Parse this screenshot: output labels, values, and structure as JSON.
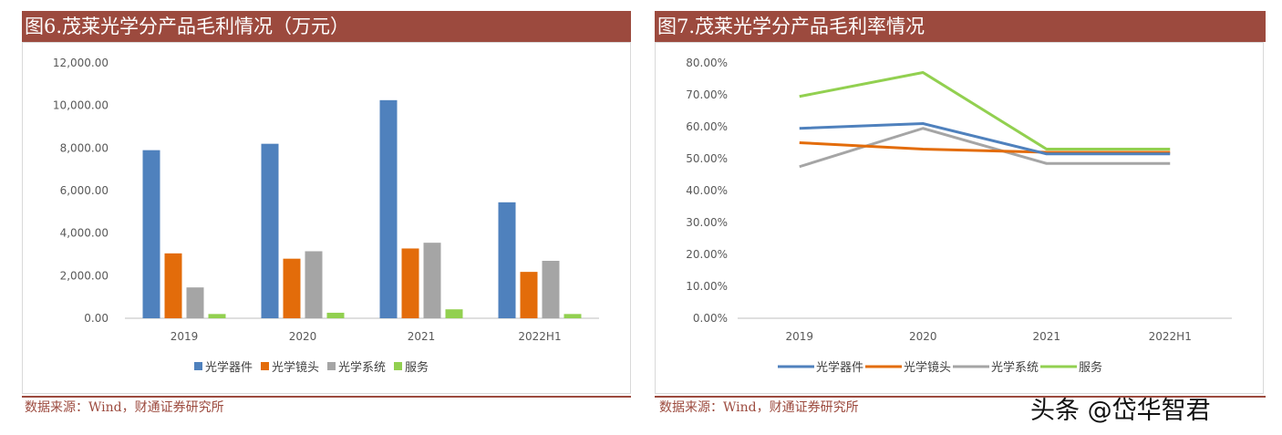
{
  "left": {
    "title": "图6.茂莱光学分产品毛利情况（万元）",
    "source": "数据来源：Wind，财通证券研究所"
  },
  "right": {
    "title": "图7.茂莱光学分产品毛利率情况",
    "source": "数据来源：Wind，财通证券研究所"
  },
  "watermark": "头条 @岱华智君",
  "colors": {
    "title_bg": "#9c4a3e",
    "series": [
      "#4f81bd",
      "#e36c0a",
      "#a5a5a5",
      "#92d050"
    ]
  },
  "chart_data": [
    {
      "type": "bar",
      "categories": [
        "2019",
        "2020",
        "2021",
        "2022H1"
      ],
      "series": [
        {
          "name": "光学器件",
          "values": [
            7900,
            8200,
            10250,
            5450
          ]
        },
        {
          "name": "光学镜头",
          "values": [
            3050,
            2800,
            3280,
            2180
          ]
        },
        {
          "name": "光学系统",
          "values": [
            1450,
            3150,
            3550,
            2700
          ]
        },
        {
          "name": "服务",
          "values": [
            200,
            260,
            420,
            200
          ]
        }
      ],
      "ylim": [
        0,
        12000
      ],
      "yticks": [
        "0.00",
        "2,000.00",
        "4,000.00",
        "6,000.00",
        "8,000.00",
        "10,000.00",
        "12,000.00"
      ],
      "title": "图6.茂莱光学分产品毛利情况（万元）",
      "xlabel": "",
      "ylabel": "",
      "grid": false,
      "legend": "bottom"
    },
    {
      "type": "line",
      "categories": [
        "2019",
        "2020",
        "2021",
        "2022H1"
      ],
      "series": [
        {
          "name": "光学器件",
          "values": [
            59.5,
            61.0,
            51.5,
            51.5
          ]
        },
        {
          "name": "光学镜头",
          "values": [
            55.0,
            53.0,
            52.0,
            52.0
          ]
        },
        {
          "name": "光学系统",
          "values": [
            47.5,
            59.5,
            48.5,
            48.5
          ]
        },
        {
          "name": "服务",
          "values": [
            69.5,
            77.0,
            53.0,
            53.0
          ]
        }
      ],
      "ylim": [
        0,
        80
      ],
      "yticks": [
        "0.00%",
        "10.00%",
        "20.00%",
        "30.00%",
        "40.00%",
        "50.00%",
        "60.00%",
        "70.00%",
        "80.00%"
      ],
      "title": "图7.茂莱光学分产品毛利率情况",
      "xlabel": "",
      "ylabel": "",
      "grid": false,
      "legend": "bottom"
    }
  ]
}
